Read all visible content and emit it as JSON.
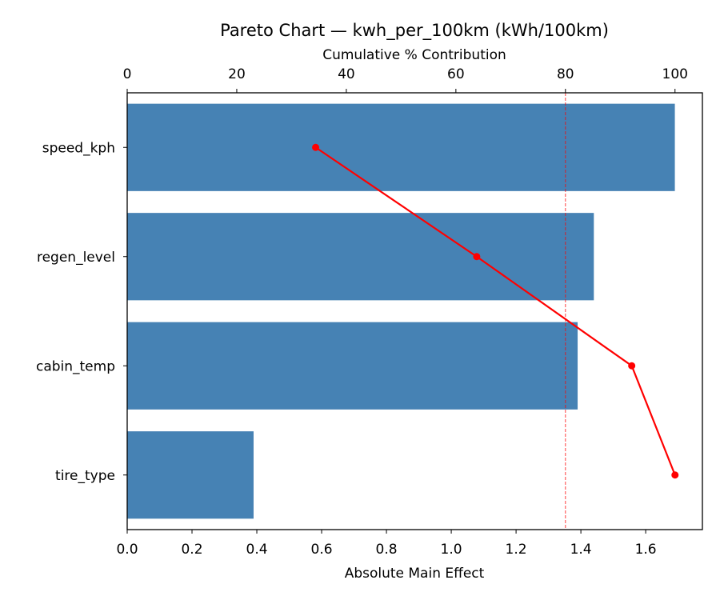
{
  "chart_data": {
    "type": "bar",
    "orientation": "horizontal",
    "title": "Pareto Chart — kwh_per_100km (kWh/100km)",
    "xlabel": "Absolute Main Effect",
    "x2label": "Cumulative % Contribution",
    "categories": [
      "speed_kph",
      "regen_level",
      "cabin_temp",
      "tire_type"
    ],
    "values": [
      1.69,
      1.44,
      1.39,
      0.39
    ],
    "cumulative_percent": [
      34.4,
      63.8,
      92.1,
      100.0
    ],
    "xlim": [
      0,
      1.775
    ],
    "x2lim": [
      0,
      105
    ],
    "xticks": [
      "0.0",
      "0.2",
      "0.4",
      "0.6",
      "0.8",
      "1.0",
      "1.2",
      "1.4",
      "1.6"
    ],
    "x2ticks": [
      "0",
      "20",
      "40",
      "60",
      "80",
      "100"
    ],
    "threshold_percent": 80,
    "grid": false,
    "colors": {
      "bar": "#4682b4",
      "cumulative_line": "#ff0000",
      "threshold": "#ff0000"
    }
  }
}
